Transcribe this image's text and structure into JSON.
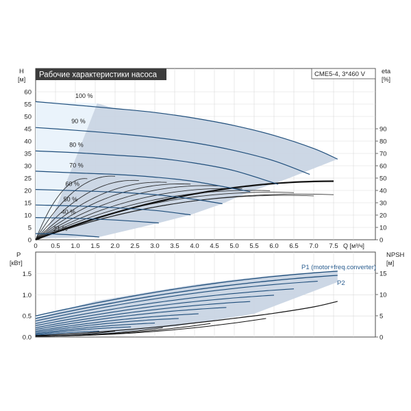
{
  "colors": {
    "frame": "#4a4a4a",
    "grid": "#d9d9d9",
    "region_fill": "#c9d5e4",
    "light_fill": "#eaf3fb",
    "pump_curve": "#1e4d7a",
    "eta_curve": "#111111",
    "title_bg": "#3c3c3c",
    "accent_text": "#2a5d8f"
  },
  "upper_chart": {
    "title": "Рабочие характеристики насоса",
    "model_label": "CME5-4, 3*460 V",
    "left_axis_label": "H",
    "left_axis_unit": "[м]",
    "right_axis_label": "eta",
    "right_axis_unit": "[%]",
    "x_label": "Q [м³/ч]",
    "x_ticks": [
      "0",
      "0.5",
      "1.0",
      "1.5",
      "2.0",
      "2.5",
      "3.0",
      "3.5",
      "4.0",
      "4.5",
      "5.0",
      "5.5",
      "6.0",
      "6.5",
      "7.0",
      "7.5"
    ],
    "h_ticks": [
      "0",
      "5",
      "10",
      "15",
      "20",
      "25",
      "30",
      "35",
      "40",
      "45",
      "50",
      "55",
      "60"
    ],
    "eta_ticks": [
      "0",
      "10",
      "20",
      "30",
      "40",
      "50",
      "60",
      "70",
      "80",
      "90"
    ],
    "speed_labels": [
      "100 %",
      "90 %",
      "80 %",
      "70 %",
      "60 %",
      "50 %",
      "40 %",
      "21 %"
    ]
  },
  "lower_chart": {
    "left_axis_label": "P",
    "left_axis_unit": "[кВт]",
    "right_axis_label": "NPSH",
    "right_axis_unit": "[м]",
    "p_ticks": [
      "0.0",
      "0.5",
      "1.0",
      "1.5"
    ],
    "npsh_ticks": [
      "0",
      "5",
      "10",
      "15"
    ],
    "p1_label": "P1 (motor+freq.converter)",
    "p2_label": "P2"
  },
  "chart_data": [
    {
      "type": "line",
      "title": "Рабочие характеристики насоса",
      "xlabel": "Q [м³/ч]",
      "ylabel": "H [м]",
      "y2label": "eta [%]",
      "xlim": [
        0,
        8.2
      ],
      "ylim": [
        0,
        65
      ],
      "y2lim": [
        0,
        100
      ],
      "grid": true,
      "series": [
        {
          "name": "100 %",
          "axis": "H",
          "x": [
            0,
            1,
            2,
            3,
            4,
            5,
            6,
            7,
            7.6
          ],
          "y": [
            56,
            54.6,
            53.2,
            51.6,
            49.3,
            46.3,
            42.3,
            37,
            32.7
          ]
        },
        {
          "name": "90 %",
          "axis": "H",
          "x": [
            0,
            1,
            2,
            3,
            4,
            5,
            6,
            6.9
          ],
          "y": [
            45.5,
            44.4,
            43.1,
            41.5,
            39.3,
            36.2,
            32,
            26.5
          ]
        },
        {
          "name": "80 %",
          "axis": "H",
          "x": [
            0,
            1,
            2,
            3,
            4,
            5,
            6.1
          ],
          "y": [
            36,
            35.3,
            34.3,
            33.2,
            31.1,
            28,
            22.5
          ]
        },
        {
          "name": "70 %",
          "axis": "H",
          "x": [
            0,
            1,
            2,
            3,
            4,
            5.4
          ],
          "y": [
            27.8,
            27.1,
            26.5,
            25.4,
            23.6,
            19.5
          ]
        },
        {
          "name": "60 %",
          "axis": "H",
          "x": [
            0,
            1,
            2,
            3,
            4,
            4.7
          ],
          "y": [
            20.4,
            19.9,
            19.3,
            18.3,
            16.4,
            14.6
          ]
        },
        {
          "name": "50 %",
          "axis": "H",
          "x": [
            0,
            1,
            2,
            3,
            3.9
          ],
          "y": [
            14.1,
            13.7,
            13,
            11.9,
            10.1
          ]
        },
        {
          "name": "40 %",
          "axis": "H",
          "x": [
            0,
            1,
            2,
            3.1
          ],
          "y": [
            9,
            8.7,
            8,
            6.8
          ]
        },
        {
          "name": "21 %",
          "axis": "H",
          "x": [
            0,
            0.5,
            1,
            1.6
          ],
          "y": [
            2.5,
            2.3,
            1.9,
            1.1
          ]
        }
      ]
    },
    {
      "type": "line",
      "xlabel": "Q [м³/ч]",
      "ylabel": "P [кВт]",
      "y2label": "NPSH [м]",
      "xlim": [
        0,
        8.2
      ],
      "ylim": [
        0,
        1.9
      ],
      "y2lim": [
        0,
        19
      ],
      "grid": true,
      "series": [
        {
          "name": "P1 (motor+freq.converter)",
          "axis": "P",
          "x": [
            0,
            1,
            2,
            3,
            4,
            5,
            6,
            7,
            7.6
          ],
          "y": [
            0.5,
            0.74,
            0.93,
            1.09,
            1.24,
            1.36,
            1.46,
            1.53,
            1.56
          ]
        },
        {
          "name": "P2",
          "axis": "P",
          "x": [
            0,
            1,
            2,
            3,
            4,
            5,
            6,
            7,
            7.6
          ],
          "y": [
            0.44,
            0.66,
            0.84,
            0.99,
            1.13,
            1.25,
            1.35,
            1.42,
            1.46
          ]
        },
        {
          "name": "NPSH",
          "axis": "NPSH",
          "x": [
            0,
            1,
            2,
            3,
            4,
            5,
            6,
            7,
            7.6
          ],
          "y": [
            0.3,
            0.8,
            1.5,
            2.3,
            3.3,
            4.4,
            5.6,
            7.1,
            8.4
          ]
        }
      ]
    }
  ]
}
